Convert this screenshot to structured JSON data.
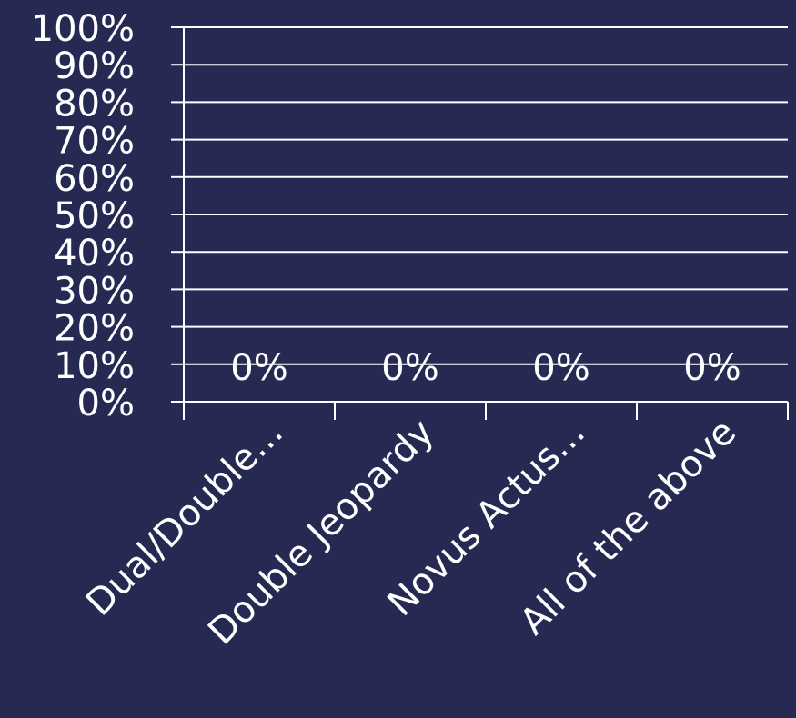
{
  "colors": {
    "background": "#262A53",
    "grid": "#FFFFFF",
    "axis": "#FFFFFF",
    "text": "#FFFFFF"
  },
  "chart_data": {
    "type": "bar",
    "title": "",
    "xlabel": "",
    "ylabel": "",
    "categories": [
      "Dual/Double...",
      "Double Jeopardy",
      "Novus Actus...",
      "All of the above"
    ],
    "values": [
      0,
      0,
      0,
      0
    ],
    "data_labels": [
      "0%",
      "0%",
      "0%",
      "0%"
    ],
    "ylim": [
      0,
      100
    ],
    "y_ticks": [
      0,
      10,
      20,
      30,
      40,
      50,
      60,
      70,
      80,
      90,
      100
    ],
    "y_tick_labels": [
      "0%",
      "10%",
      "20%",
      "30%",
      "40%",
      "50%",
      "60%",
      "70%",
      "80%",
      "90%",
      "100%"
    ],
    "grid": true,
    "legend": "none"
  }
}
